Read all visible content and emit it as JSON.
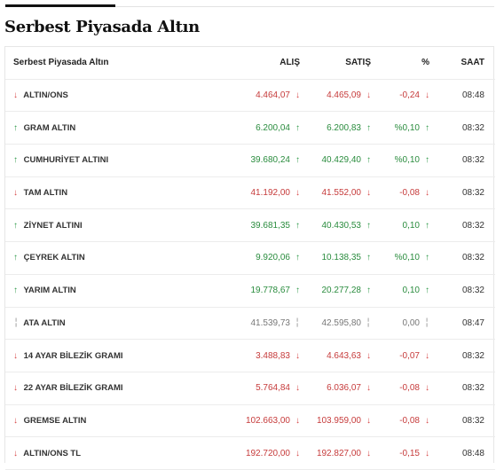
{
  "page": {
    "title": "Serbest Piyasada Altın"
  },
  "table": {
    "headers": {
      "name": "Serbest Piyasada Altın",
      "buy": "ALIŞ",
      "sell": "SATIŞ",
      "pct": "%",
      "time": "SAAT"
    },
    "rows": [
      {
        "name": "ALTIN/ONS",
        "dir": "down",
        "buy": "4.464,07",
        "sell": "4.465,09",
        "pct": "-0,24",
        "time": "08:48"
      },
      {
        "name": "GRAM ALTIN",
        "dir": "up",
        "buy": "6.200,04",
        "sell": "6.200,83",
        "pct": "%0,10",
        "time": "08:32"
      },
      {
        "name": "CUMHURİYET ALTINI",
        "dir": "up",
        "buy": "39.680,24",
        "sell": "40.429,40",
        "pct": "%0,10",
        "time": "08:32"
      },
      {
        "name": "TAM ALTIN",
        "dir": "down",
        "buy": "41.192,00",
        "sell": "41.552,00",
        "pct": "-0,08",
        "time": "08:32"
      },
      {
        "name": "ZİYNET ALTINI",
        "dir": "up",
        "buy": "39.681,35",
        "sell": "40.430,53",
        "pct": "0,10",
        "time": "08:32"
      },
      {
        "name": "ÇEYREK ALTIN",
        "dir": "up",
        "buy": "9.920,06",
        "sell": "10.138,35",
        "pct": "%0,10",
        "time": "08:32"
      },
      {
        "name": "YARIM ALTIN",
        "dir": "up",
        "buy": "19.778,67",
        "sell": "20.277,28",
        "pct": "0,10",
        "time": "08:32"
      },
      {
        "name": "ATA ALTIN",
        "dir": "flat",
        "buy": "41.539,73",
        "sell": "42.595,80",
        "pct": "0,00",
        "time": "08:47"
      },
      {
        "name": "14 AYAR BİLEZİK GRAMI",
        "dir": "down",
        "buy": "3.488,83",
        "sell": "4.643,63",
        "pct": "-0,07",
        "time": "08:32"
      },
      {
        "name": "22 AYAR BİLEZİK GRAMI",
        "dir": "down",
        "buy": "5.764,84",
        "sell": "6.036,07",
        "pct": "-0,08",
        "time": "08:32"
      },
      {
        "name": "GREMSE ALTIN",
        "dir": "down",
        "buy": "102.663,00",
        "sell": "103.959,00",
        "pct": "-0,08",
        "time": "08:32"
      },
      {
        "name": "ALTIN/ONS TL",
        "dir": "down",
        "buy": "192.720,00",
        "sell": "192.827,00",
        "pct": "-0,15",
        "time": "08:48"
      }
    ]
  },
  "icons": {
    "down": "arrow-down-icon",
    "up": "arrow-up-icon",
    "flat": "dash-icon"
  },
  "colors": {
    "down": "#d64545",
    "up": "#2e9a49",
    "flat": "#8a8a8a"
  }
}
